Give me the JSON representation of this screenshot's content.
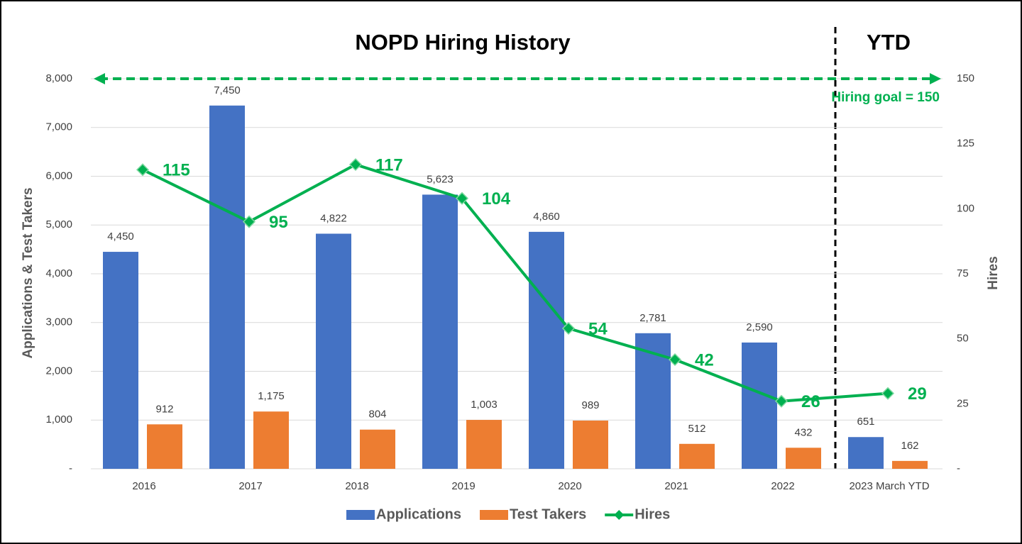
{
  "chart_data": {
    "type": "bar",
    "title": "NOPD Hiring History",
    "annotation": "YTD",
    "ylabel": "Applications & Test Takers",
    "y2label": "Hires",
    "categories": [
      "2016",
      "2017",
      "2018",
      "2019",
      "2020",
      "2021",
      "2022",
      "2023 March YTD"
    ],
    "series": [
      {
        "name": "Applications",
        "color": "#4472c4",
        "values": [
          4450,
          7450,
          4822,
          5623,
          4860,
          2781,
          2590,
          651
        ],
        "value_labels": [
          "4,450",
          "7,450",
          "4,822",
          "5,623",
          "4,860",
          "2,781",
          "2,590",
          "651"
        ]
      },
      {
        "name": "Test Takers",
        "color": "#ed7d31",
        "values": [
          912,
          1175,
          804,
          1003,
          989,
          512,
          432,
          162
        ],
        "value_labels": [
          "912",
          "1,175",
          "804",
          "1,003",
          "989",
          "512",
          "432",
          "162"
        ]
      },
      {
        "name": "Hires",
        "color": "#00b050",
        "type": "line",
        "axis": "y2",
        "values": [
          115,
          95,
          117,
          104,
          54,
          42,
          26,
          29
        ]
      }
    ],
    "goal": {
      "value": 150,
      "label": "Hiring goal  = 150",
      "color": "#00b050"
    },
    "ylim": [
      0,
      8000
    ],
    "yticks": [
      {
        "value": 0,
        "label": "-"
      },
      {
        "value": 1000,
        "label": "1,000"
      },
      {
        "value": 2000,
        "label": "2,000"
      },
      {
        "value": 3000,
        "label": "3,000"
      },
      {
        "value": 4000,
        "label": "4,000"
      },
      {
        "value": 5000,
        "label": "5,000"
      },
      {
        "value": 6000,
        "label": "6,000"
      },
      {
        "value": 7000,
        "label": "7,000"
      },
      {
        "value": 8000,
        "label": "8,000"
      }
    ],
    "y2lim": [
      0,
      150
    ],
    "y2ticks": [
      {
        "value": 0,
        "label": "-"
      },
      25,
      50,
      75,
      100,
      125,
      150
    ],
    "grid": true,
    "legend": "bottom"
  }
}
